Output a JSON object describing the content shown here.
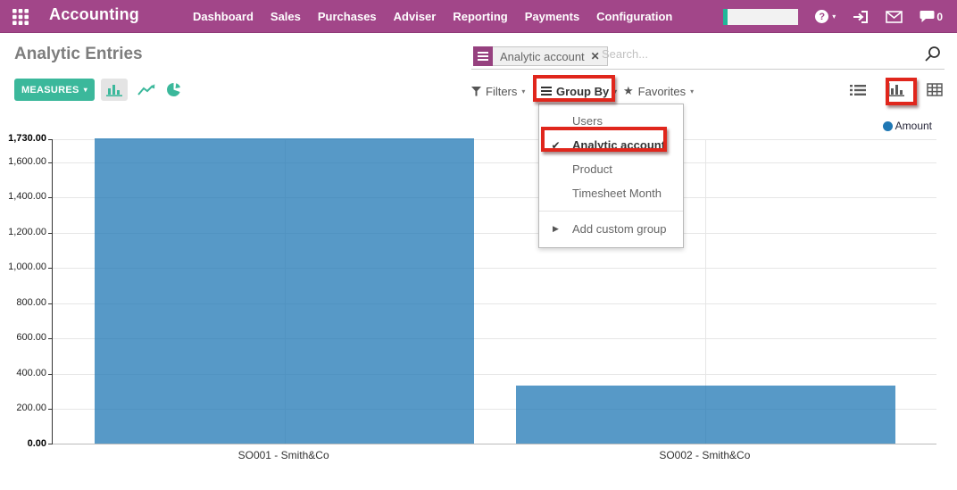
{
  "navbar": {
    "app_name": "Accounting",
    "menu_items": [
      "Dashboard",
      "Sales",
      "Purchases",
      "Adviser",
      "Reporting",
      "Payments",
      "Configuration"
    ],
    "chat_count": "0"
  },
  "page": {
    "title": "Analytic Entries"
  },
  "search": {
    "facet_label": "Analytic account",
    "placeholder": "Search..."
  },
  "toolbar": {
    "measures_label": "MEASURES"
  },
  "filter_bar": {
    "filters_label": "Filters",
    "group_by_label": "Group By",
    "favorites_label": "Favorites"
  },
  "group_by_menu": {
    "items": [
      {
        "label": "Users",
        "checked": false
      },
      {
        "label": "Analytic account",
        "checked": true
      },
      {
        "label": "Product",
        "checked": false
      },
      {
        "label": "Timesheet Month",
        "checked": false
      }
    ],
    "add_custom_label": "Add custom group"
  },
  "chart_data": {
    "type": "bar",
    "title": "",
    "categories": [
      "SO001 - Smith&Co",
      "SO002 - Smith&Co"
    ],
    "series": [
      {
        "name": "Amount",
        "values": [
          1730,
          330
        ]
      }
    ],
    "ylim": [
      0,
      1730
    ],
    "yticks": [
      0,
      200,
      400,
      600,
      800,
      1000,
      1200,
      1400,
      1600,
      1730
    ],
    "ytick_labels": [
      "0.00",
      "200.00",
      "400.00",
      "600.00",
      "800.00",
      "1,000.00",
      "1,200.00",
      "1,400.00",
      "1,600.00",
      "1,730.00"
    ],
    "legend": [
      "Amount"
    ],
    "legend_position": "top-right",
    "grid": true
  },
  "glyphs": {
    "caret_down": "▾",
    "caret_right": "▶",
    "check": "✔",
    "close": "✕",
    "star": "★",
    "question": "?"
  },
  "colors": {
    "navbar_bg": "#a24689",
    "accent_teal": "#3bb89b",
    "bar_fill": "#5799c7",
    "legend_dot": "#1f77b4",
    "annotation_red": "#e0261c"
  }
}
